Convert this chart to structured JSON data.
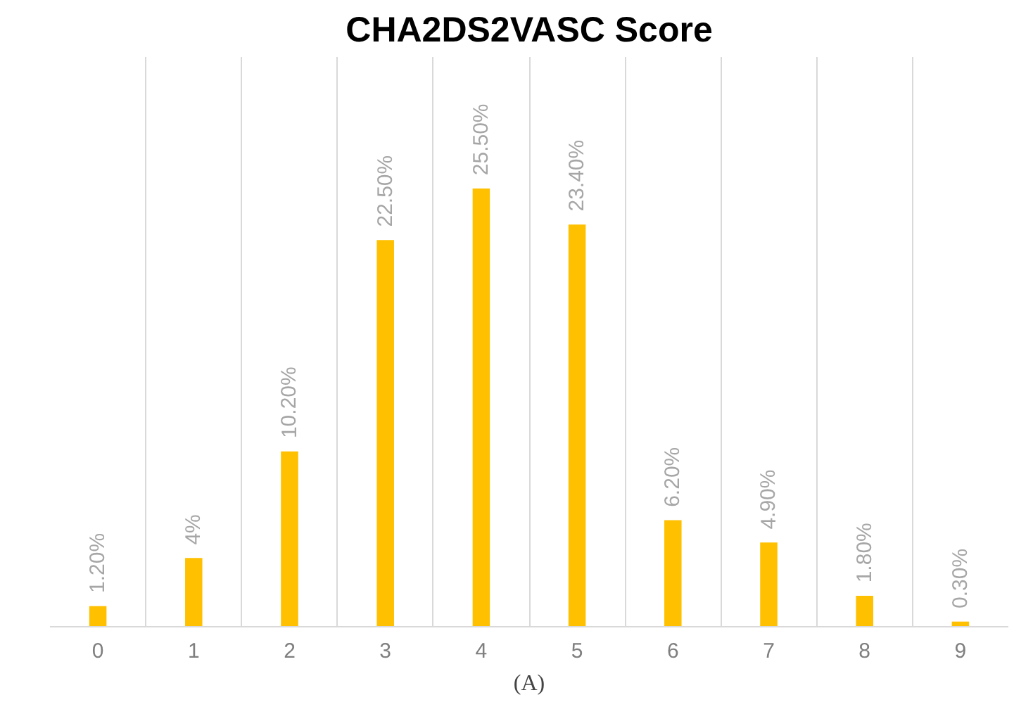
{
  "chart_data": {
    "type": "bar",
    "title": "CHA2DS2VASC Score",
    "categories": [
      "0",
      "1",
      "2",
      "3",
      "4",
      "5",
      "6",
      "7",
      "8",
      "9"
    ],
    "values": [
      1.2,
      4,
      10.2,
      22.5,
      25.5,
      23.4,
      6.2,
      4.9,
      1.8,
      0.3
    ],
    "value_labels": [
      "1.20%",
      "4%",
      "10.20%",
      "22.50%",
      "25.50%",
      "23.40%",
      "6.20%",
      "4.90%",
      "1.80%",
      "0.30%"
    ],
    "color": "#ffc000",
    "grid": "x",
    "annotations": [
      "(A)"
    ]
  }
}
